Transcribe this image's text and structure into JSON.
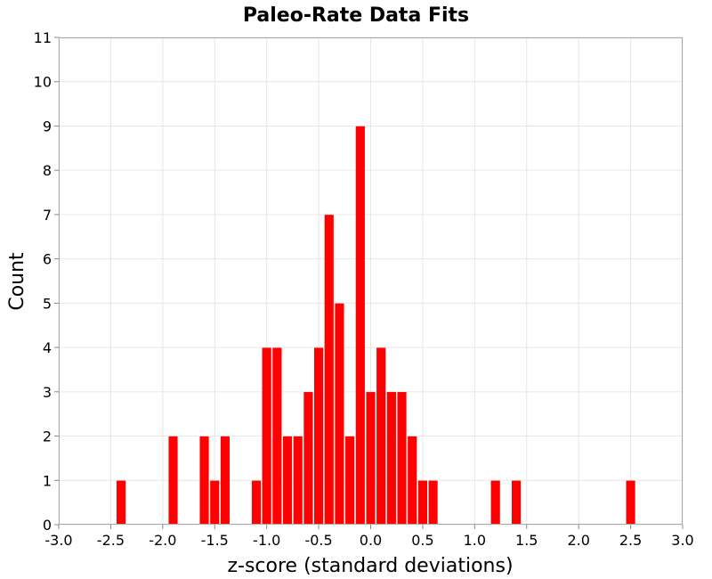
{
  "chart_data": {
    "type": "bar",
    "title": "Paleo-Rate Data Fits",
    "xlabel": "z-score (standard deviations)",
    "ylabel": "Count",
    "xlim": [
      -3.0,
      3.0
    ],
    "ylim": [
      0,
      11
    ],
    "bin_width": 0.1,
    "x_ticks": [
      "-3.0",
      "-2.5",
      "-2.0",
      "-1.5",
      "-1.0",
      "-0.5",
      "0.0",
      "0.5",
      "1.0",
      "1.5",
      "2.0",
      "2.5",
      "3.0"
    ],
    "y_ticks": [
      "0",
      "1",
      "2",
      "3",
      "4",
      "5",
      "6",
      "7",
      "8",
      "9",
      "10",
      "11"
    ],
    "grid": true,
    "bar_color": "#ff0000",
    "bins": [
      {
        "x": -2.4,
        "count": 1
      },
      {
        "x": -1.9,
        "count": 2
      },
      {
        "x": -1.6,
        "count": 2
      },
      {
        "x": -1.5,
        "count": 1
      },
      {
        "x": -1.4,
        "count": 2
      },
      {
        "x": -1.1,
        "count": 1
      },
      {
        "x": -1.0,
        "count": 4
      },
      {
        "x": -0.9,
        "count": 4
      },
      {
        "x": -0.8,
        "count": 2
      },
      {
        "x": -0.7,
        "count": 2
      },
      {
        "x": -0.6,
        "count": 3
      },
      {
        "x": -0.5,
        "count": 4
      },
      {
        "x": -0.4,
        "count": 7
      },
      {
        "x": -0.3,
        "count": 5
      },
      {
        "x": -0.2,
        "count": 2
      },
      {
        "x": -0.1,
        "count": 9
      },
      {
        "x": 0.0,
        "count": 3
      },
      {
        "x": 0.1,
        "count": 4
      },
      {
        "x": 0.2,
        "count": 3
      },
      {
        "x": 0.3,
        "count": 3
      },
      {
        "x": 0.4,
        "count": 2
      },
      {
        "x": 0.5,
        "count": 1
      },
      {
        "x": 0.6,
        "count": 1
      },
      {
        "x": 1.2,
        "count": 1
      },
      {
        "x": 1.4,
        "count": 1
      },
      {
        "x": 2.5,
        "count": 1
      }
    ]
  }
}
